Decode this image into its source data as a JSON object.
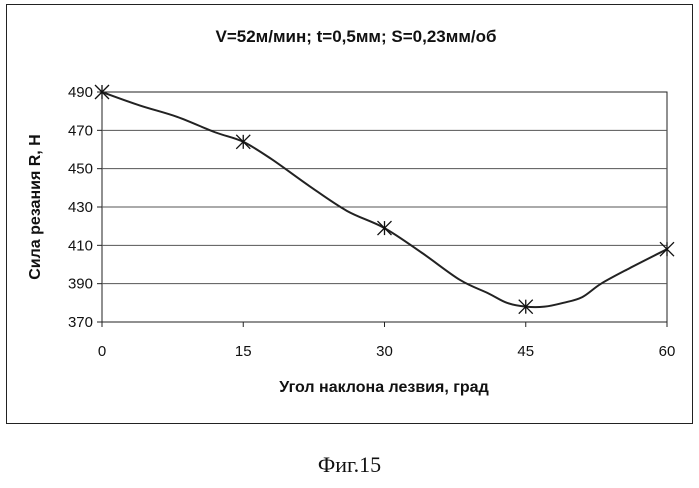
{
  "figure": {
    "caption": "Фиг.15"
  },
  "chart_data": {
    "type": "line",
    "title": "V=52м/мин; t=0,5мм; S=0,23мм/об",
    "xlabel": "Угол наклона лезвия, град",
    "ylabel": "Сила резания R, Н",
    "xlim": [
      0,
      60
    ],
    "ylim": [
      370,
      490
    ],
    "x_ticks": [
      0,
      15,
      30,
      45,
      60
    ],
    "y_ticks": [
      370,
      390,
      410,
      430,
      450,
      470,
      490
    ],
    "grid": true,
    "legend": "none",
    "line_color": "#222222",
    "marker": "asterisk",
    "series": [
      {
        "markers_x": [
          0,
          15,
          30,
          45,
          60
        ],
        "markers_y": [
          490,
          464,
          419,
          378,
          408
        ],
        "curve_x": [
          0,
          4,
          8,
          12,
          15,
          18,
          22,
          26,
          30,
          34,
          38,
          41,
          43,
          45,
          47,
          49,
          51,
          53,
          56,
          60
        ],
        "curve_y": [
          490,
          483,
          477,
          469,
          464,
          455,
          441,
          428,
          419,
          406,
          392,
          385,
          380,
          378,
          378,
          380,
          383,
          390,
          398,
          408
        ]
      }
    ]
  }
}
